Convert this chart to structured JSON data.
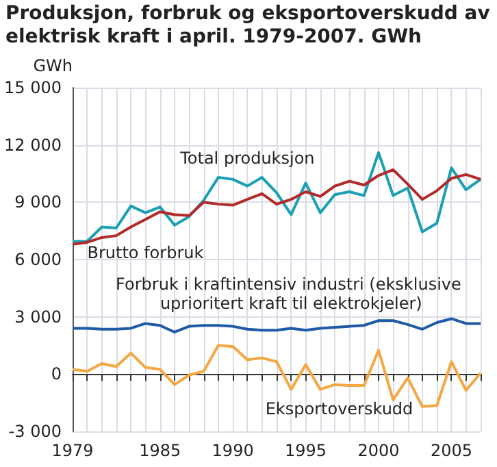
{
  "chart_data": {
    "type": "line",
    "title": "Produksjon, forbruk og eksportoverskudd av elektrisk kraft i april. 1979-2007. GWh",
    "ylabel": "GWh",
    "x": [
      1979,
      1980,
      1981,
      1982,
      1983,
      1984,
      1985,
      1986,
      1987,
      1988,
      1989,
      1990,
      1991,
      1992,
      1993,
      1994,
      1995,
      1996,
      1997,
      1998,
      1999,
      2000,
      2001,
      2002,
      2003,
      2004,
      2005,
      2006,
      2007
    ],
    "series": [
      {
        "name": "Total produksjon",
        "color": "#1a9fb5",
        "values": [
          6950,
          6950,
          7700,
          7650,
          8800,
          8450,
          8750,
          7800,
          8250,
          9100,
          10300,
          10200,
          9850,
          10300,
          9500,
          8350,
          10000,
          8450,
          9400,
          9550,
          9350,
          11600,
          9350,
          9750,
          7450,
          7900,
          10800,
          9650,
          10200
        ]
      },
      {
        "name": "Brutto forbruk",
        "color": "#b22a2a",
        "values": [
          6800,
          6900,
          7150,
          7250,
          7700,
          8100,
          8500,
          8350,
          8300,
          9000,
          8900,
          8850,
          9150,
          9450,
          8900,
          9150,
          9550,
          9300,
          9850,
          10100,
          9900,
          10400,
          10700,
          9950,
          9150,
          9600,
          10250,
          10450,
          10200
        ]
      },
      {
        "name": "Forbruk i kraftintensiv industri (eksklusive uprioritert kraft til elektrokjeler)",
        "color": "#1f5aa6",
        "values": [
          2400,
          2400,
          2350,
          2350,
          2400,
          2650,
          2550,
          2200,
          2500,
          2550,
          2550,
          2500,
          2350,
          2300,
          2300,
          2400,
          2300,
          2400,
          2450,
          2500,
          2550,
          2800,
          2800,
          2600,
          2350,
          2700,
          2900,
          2650,
          2650
        ]
      },
      {
        "name": "Eksportoverskudd",
        "color": "#f5a742",
        "values": [
          250,
          150,
          550,
          400,
          1100,
          350,
          250,
          -550,
          -50,
          150,
          1500,
          1450,
          750,
          850,
          650,
          -800,
          500,
          -800,
          -550,
          -600,
          -600,
          1250,
          -1350,
          -200,
          -1700,
          -1650,
          650,
          -850,
          50
        ]
      }
    ],
    "xlim": [
      1979,
      2007
    ],
    "xticks": [
      1979,
      {
        "value": 1980,
        "label": null
      },
      {
        "value": 1981,
        "label": null
      },
      {
        "value": 1982,
        "label": null
      },
      {
        "value": 1983,
        "label": null
      },
      {
        "value": 1984,
        "label": null
      },
      1985,
      {
        "value": 1986,
        "label": null
      },
      {
        "value": 1987,
        "label": null
      },
      {
        "value": 1988,
        "label": null
      },
      {
        "value": 1989,
        "label": null
      },
      1990,
      {
        "value": 1991,
        "label": null
      },
      {
        "value": 1992,
        "label": null
      },
      {
        "value": 1993,
        "label": null
      },
      {
        "value": 1994,
        "label": null
      },
      1995,
      {
        "value": 1996,
        "label": null
      },
      {
        "value": 1997,
        "label": null
      },
      {
        "value": 1998,
        "label": null
      },
      {
        "value": 1999,
        "label": null
      },
      2000,
      {
        "value": 2001,
        "label": null
      },
      {
        "value": 2002,
        "label": null
      },
      {
        "value": 2003,
        "label": null
      },
      {
        "value": 2004,
        "label": null
      },
      2005,
      {
        "value": 2006,
        "label": null
      },
      {
        "value": 2007,
        "label": null
      }
    ],
    "ylim": [
      -3000,
      15000
    ],
    "yticks": [
      {
        "value": -3000,
        "label": "-3 000"
      },
      0,
      {
        "value": 3000,
        "label": "3 000"
      },
      {
        "value": 6000,
        "label": "6 000"
      },
      {
        "value": 9000,
        "label": "9 000"
      },
      {
        "value": 12000,
        "label": "12 000"
      },
      {
        "value": 15000,
        "label": "15 000"
      }
    ],
    "grid": true,
    "legend": false,
    "marker": "none",
    "line_style": "solid"
  }
}
